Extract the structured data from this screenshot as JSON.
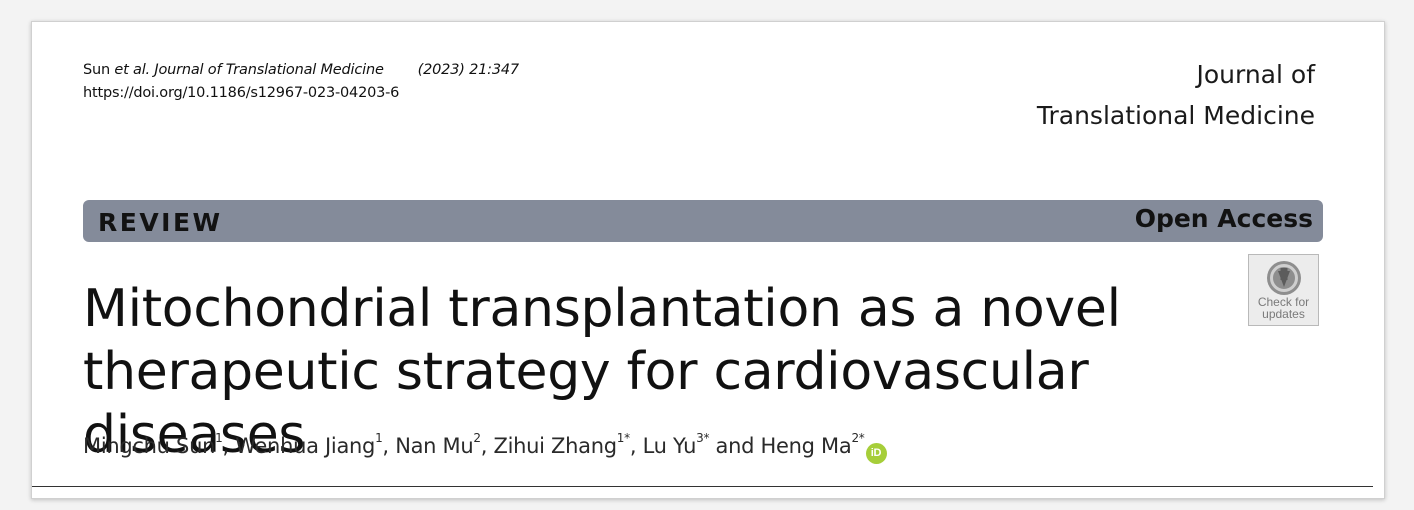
{
  "citation": {
    "authors_prefix": "Sun ",
    "etal": "et al.",
    "journal": " Journal of Translational Medicine",
    "year_volume": "(2023) 21:347",
    "doi": "https://doi.org/10.1186/s12967-023-04203-6"
  },
  "journal_name": {
    "line1": "Journal of",
    "line2": "Translational Medicine"
  },
  "banner": {
    "type": "REVIEW",
    "access": "Open Access",
    "color": "#848b9a"
  },
  "check_updates": {
    "line1": "Check for",
    "line2": "updates",
    "icon": "check-for-updates-icon"
  },
  "article": {
    "title_line1": "Mitochondrial transplantation as a novel",
    "title_line2": "therapeutic strategy for cardiovascular diseases"
  },
  "authors": [
    {
      "name": "Mingchu Sun",
      "aff": "1",
      "sep": ", "
    },
    {
      "name": "Wenhua Jiang",
      "aff": "1",
      "sep": ", "
    },
    {
      "name": "Nan Mu",
      "aff": "2",
      "sep": ", "
    },
    {
      "name": "Zihui Zhang",
      "aff": "1*",
      "sep": ", "
    },
    {
      "name": "Lu Yu",
      "aff": "3*",
      "sep": " and "
    },
    {
      "name": "Heng Ma",
      "aff": "2*",
      "sep": ""
    }
  ],
  "orcid": {
    "label": "iD",
    "icon": "orcid-icon",
    "color": "#a6ce39"
  }
}
